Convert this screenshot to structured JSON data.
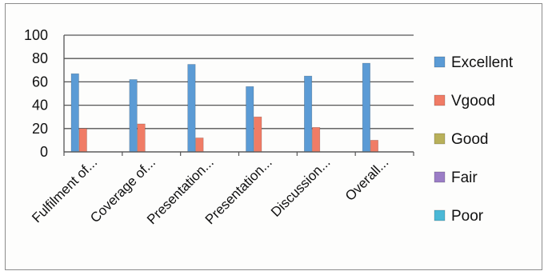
{
  "chart_data": {
    "type": "bar",
    "categories": [
      "Fulfilment of...",
      "Coverage of...",
      "Presentation...",
      "Presentation...",
      "Discussion...",
      "Overall..."
    ],
    "series": [
      {
        "name": "Excellent",
        "color": "#5b9bd5",
        "values": [
          67,
          62,
          75,
          56,
          65,
          76
        ]
      },
      {
        "name": "Vgood",
        "color": "#f07c66",
        "values": [
          20,
          24,
          12,
          30,
          21,
          10
        ]
      },
      {
        "name": "Good",
        "color": "#b8b05a",
        "values": [
          0,
          0,
          0,
          0,
          0,
          0
        ]
      },
      {
        "name": "Fair",
        "color": "#9b7dc6",
        "values": [
          0,
          0,
          0,
          0,
          0,
          0
        ]
      },
      {
        "name": "Poor",
        "color": "#4bb8d6",
        "values": [
          0,
          0,
          0,
          0,
          0,
          0
        ]
      }
    ],
    "ylim": [
      0,
      100
    ],
    "yticks": [
      0,
      20,
      40,
      60,
      80,
      100
    ],
    "grid": true,
    "legend": "right",
    "title": "",
    "xlabel": "",
    "ylabel": ""
  }
}
